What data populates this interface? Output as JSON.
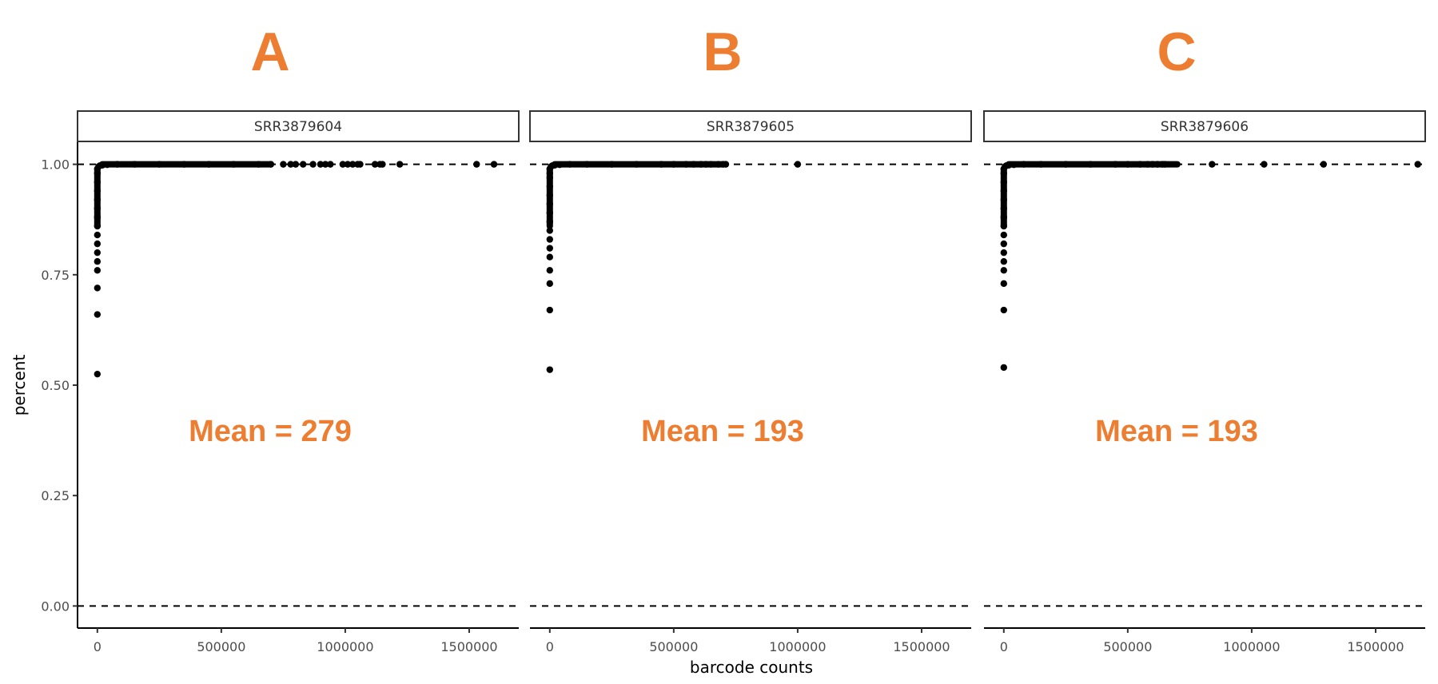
{
  "chart_data": {
    "type": "scatter",
    "xlabel": "barcode counts",
    "ylabel": "percent",
    "xlim": [
      -80000,
      1700000
    ],
    "ylim": [
      -0.05,
      1.05
    ],
    "x_ticks": [
      0,
      500000,
      1000000,
      1500000
    ],
    "x_tick_labels": [
      "0",
      "500000",
      "1000000",
      "1500000"
    ],
    "y_ticks": [
      0.0,
      0.25,
      0.5,
      0.75,
      1.0
    ],
    "y_tick_labels": [
      "0.00",
      "0.25",
      "0.50",
      "0.75",
      "1.00"
    ],
    "reference_lines": [
      0,
      1
    ],
    "grid": false,
    "panels": [
      {
        "letter": "A",
        "strip": "SRR3879604",
        "annotation": "Mean = 279",
        "points": [
          [
            0,
            0.525
          ],
          [
            0,
            0.66
          ],
          [
            0,
            0.72
          ],
          [
            0,
            0.76
          ],
          [
            0,
            0.78
          ],
          [
            0,
            0.8
          ],
          [
            0,
            0.82
          ],
          [
            0,
            0.84
          ],
          [
            0,
            0.86
          ],
          [
            0,
            0.88
          ],
          [
            0,
            0.9
          ],
          [
            0,
            0.92
          ],
          [
            0,
            0.94
          ],
          [
            0,
            0.96
          ],
          [
            0,
            0.98
          ],
          [
            0,
            0.99
          ],
          [
            5000,
            0.995
          ],
          [
            10000,
            0.997
          ],
          [
            20000,
            0.998
          ],
          [
            40000,
            0.999
          ],
          [
            80000,
            1.0
          ],
          [
            150000,
            1.0
          ],
          [
            250000,
            1.0
          ],
          [
            350000,
            1.0
          ],
          [
            450000,
            1.0
          ],
          [
            550000,
            1.0
          ],
          [
            650000,
            1.0
          ],
          [
            700000,
            1.0
          ],
          [
            750000,
            1.0
          ],
          [
            780000,
            1.0
          ],
          [
            800000,
            1.0
          ],
          [
            830000,
            1.0
          ],
          [
            870000,
            1.0
          ],
          [
            900000,
            1.0
          ],
          [
            920000,
            1.0
          ],
          [
            940000,
            1.0
          ],
          [
            990000,
            1.0
          ],
          [
            1010000,
            1.0
          ],
          [
            1030000,
            1.0
          ],
          [
            1050000,
            1.0
          ],
          [
            1060000,
            1.0
          ],
          [
            1120000,
            1.0
          ],
          [
            1140000,
            1.0
          ],
          [
            1150000,
            1.0
          ],
          [
            1220000,
            1.0
          ],
          [
            1530000,
            1.0
          ],
          [
            1600000,
            1.0
          ]
        ]
      },
      {
        "letter": "B",
        "strip": "SRR3879605",
        "annotation": "Mean = 193",
        "points": [
          [
            0,
            0.535
          ],
          [
            0,
            0.67
          ],
          [
            0,
            0.73
          ],
          [
            0,
            0.76
          ],
          [
            0,
            0.79
          ],
          [
            0,
            0.81
          ],
          [
            0,
            0.83
          ],
          [
            0,
            0.85
          ],
          [
            0,
            0.87
          ],
          [
            0,
            0.89
          ],
          [
            0,
            0.91
          ],
          [
            0,
            0.93
          ],
          [
            0,
            0.95
          ],
          [
            0,
            0.97
          ],
          [
            0,
            0.98
          ],
          [
            0,
            0.99
          ],
          [
            5000,
            0.995
          ],
          [
            10000,
            0.997
          ],
          [
            20000,
            0.998
          ],
          [
            40000,
            0.999
          ],
          [
            80000,
            1.0
          ],
          [
            150000,
            1.0
          ],
          [
            250000,
            1.0
          ],
          [
            350000,
            1.0
          ],
          [
            450000,
            1.0
          ],
          [
            500000,
            1.0
          ],
          [
            550000,
            1.0
          ],
          [
            580000,
            1.0
          ],
          [
            610000,
            1.0
          ],
          [
            630000,
            1.0
          ],
          [
            650000,
            1.0
          ],
          [
            680000,
            1.0
          ],
          [
            700000,
            1.0
          ],
          [
            710000,
            1.0
          ],
          [
            1000000,
            1.0
          ]
        ]
      },
      {
        "letter": "C",
        "strip": "SRR3879606",
        "annotation": "Mean = 193",
        "points": [
          [
            0,
            0.54
          ],
          [
            0,
            0.67
          ],
          [
            0,
            0.73
          ],
          [
            0,
            0.76
          ],
          [
            0,
            0.78
          ],
          [
            0,
            0.8
          ],
          [
            0,
            0.82
          ],
          [
            0,
            0.84
          ],
          [
            0,
            0.86
          ],
          [
            0,
            0.88
          ],
          [
            0,
            0.9
          ],
          [
            0,
            0.92
          ],
          [
            0,
            0.94
          ],
          [
            0,
            0.96
          ],
          [
            0,
            0.98
          ],
          [
            0,
            0.99
          ],
          [
            5000,
            0.995
          ],
          [
            10000,
            0.997
          ],
          [
            20000,
            0.998
          ],
          [
            40000,
            0.999
          ],
          [
            80000,
            1.0
          ],
          [
            150000,
            1.0
          ],
          [
            250000,
            1.0
          ],
          [
            350000,
            1.0
          ],
          [
            450000,
            1.0
          ],
          [
            500000,
            1.0
          ],
          [
            550000,
            1.0
          ],
          [
            580000,
            1.0
          ],
          [
            600000,
            1.0
          ],
          [
            620000,
            1.0
          ],
          [
            640000,
            1.0
          ],
          [
            650000,
            1.0
          ],
          [
            840000,
            1.0
          ],
          [
            1050000,
            1.0
          ],
          [
            1290000,
            1.0
          ],
          [
            1670000,
            1.0
          ]
        ]
      }
    ]
  },
  "colors": {
    "annotation": "#ED7D31",
    "points": "#000000",
    "strip_border": "#333333"
  }
}
